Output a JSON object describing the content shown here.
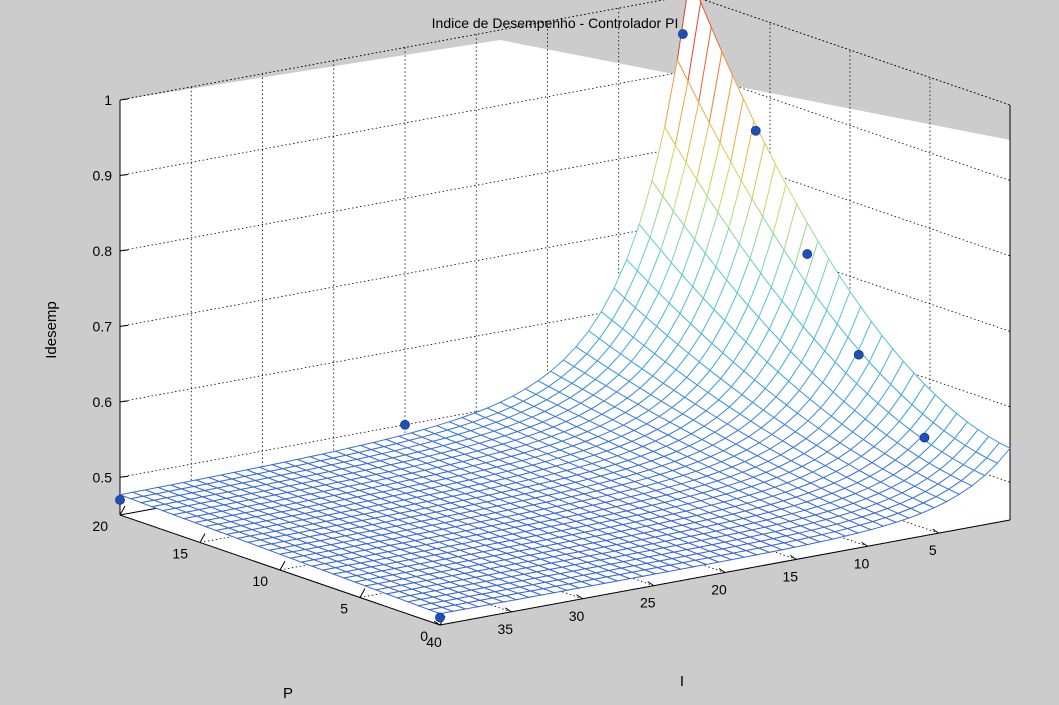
{
  "chart_data": {
    "type": "surface",
    "title": "Indice de Desempenho - Controlador PI",
    "xlabel": "P",
    "ylabel": "I",
    "zlabel": "Idesemp",
    "xlim": [
      0,
      20
    ],
    "ylim": [
      0,
      40
    ],
    "zlim": [
      0.45,
      1
    ],
    "x_ticks": [
      "0",
      "5",
      "10",
      "15",
      "20"
    ],
    "y_ticks": [
      "5",
      "10",
      "15",
      "20",
      "25",
      "30",
      "35",
      "40"
    ],
    "z_ticks": [
      "0.5",
      "0.6",
      "0.7",
      "0.8",
      "0.9",
      "1"
    ],
    "grid": true,
    "colormap": [
      "#3a67d8",
      "#44aadc",
      "#5fd0d8",
      "#c8e06a",
      "#f0a848",
      "#e0402c"
    ],
    "surface_description": "Near-flat surface at about 0.47 for large I; rises steeply as I approaches 0, highest (about 0.95) at P=20, I near 0.",
    "sample_points": [
      {
        "P": 20,
        "I": 0.5,
        "Idesemp": 0.95
      },
      {
        "P": 15,
        "I": 1,
        "Idesemp": 0.86
      },
      {
        "P": 10,
        "I": 3,
        "Idesemp": 0.74
      },
      {
        "P": 5,
        "I": 5,
        "Idesemp": 0.65
      },
      {
        "P": 0,
        "I": 6,
        "Idesemp": 0.58
      },
      {
        "P": 20,
        "I": 40,
        "Idesemp": 0.47
      },
      {
        "P": 20,
        "I": 20,
        "Idesemp": 0.5
      },
      {
        "P": 0,
        "I": 40,
        "Idesemp": 0.46
      }
    ]
  }
}
